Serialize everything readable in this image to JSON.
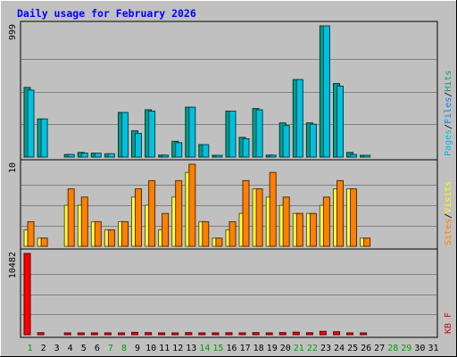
{
  "chart_data": {
    "type": "bar",
    "title": "Daily usage for February 2026",
    "x": [
      "1",
      "2",
      "3",
      "4",
      "5",
      "6",
      "7",
      "8",
      "9",
      "10",
      "11",
      "12",
      "13",
      "14",
      "15",
      "16",
      "17",
      "18",
      "19",
      "20",
      "21",
      "22",
      "23",
      "24",
      "25",
      "26",
      "27",
      "28",
      "29",
      "30",
      "31"
    ],
    "weekend_days": [
      "1",
      "7",
      "8",
      "14",
      "15",
      "21",
      "22",
      "28",
      "29"
    ],
    "panels": [
      {
        "name": "hits_files_pages",
        "ymax_label": "999",
        "ymax": 999,
        "legend": [
          {
            "text": "Pages",
            "color": "#00c0e0"
          },
          {
            "text": "/",
            "color": "#000000"
          },
          {
            "text": "Files",
            "color": "#0080ff"
          },
          {
            "text": "/",
            "color": "#000000"
          },
          {
            "text": "Hits",
            "color": "#00a080"
          }
        ],
        "series": [
          {
            "name": "Hits",
            "color": "#009e8a",
            "values": [
              530,
              290,
              0,
              20,
              35,
              30,
              25,
              340,
              200,
              360,
              15,
              120,
              380,
              95,
              10,
              350,
              150,
              370,
              15,
              260,
              590,
              260,
              999,
              560,
              35,
              10,
              0,
              0,
              0,
              0,
              0
            ]
          },
          {
            "name": "Pages",
            "color": "#00c0e0",
            "values": [
              510,
              290,
              0,
              20,
              30,
              30,
              25,
              340,
              180,
              350,
              15,
              110,
              380,
              95,
              10,
              350,
              140,
              360,
              15,
              240,
              590,
              250,
              999,
              540,
              20,
              10,
              0,
              0,
              0,
              0,
              0
            ]
          }
        ]
      },
      {
        "name": "visits_sites",
        "ymax_label": "10",
        "ymax": 10,
        "legend": [
          {
            "text": "Sites",
            "color": "#ff8000"
          },
          {
            "text": "/",
            "color": "#000000"
          },
          {
            "text": "Visits",
            "color": "#ffff00"
          }
        ],
        "series": [
          {
            "name": "Visits",
            "color": "#ffff40",
            "values": [
              2,
              1,
              0,
              5,
              5,
              3,
              2,
              3,
              6,
              5,
              2,
              6,
              9,
              3,
              1,
              2,
              4,
              7,
              6,
              5,
              4,
              4,
              5,
              7,
              7,
              1,
              0,
              0,
              0,
              0,
              0
            ]
          },
          {
            "name": "Sites",
            "color": "#ff8000",
            "values": [
              3,
              1,
              0,
              7,
              6,
              3,
              2,
              3,
              7,
              8,
              4,
              8,
              10,
              3,
              1,
              3,
              8,
              7,
              9,
              6,
              4,
              4,
              6,
              8,
              7,
              1,
              0,
              0,
              0,
              0,
              0
            ]
          }
        ]
      },
      {
        "name": "kbytes",
        "ymax_label": "10482",
        "ymax": 10482,
        "legend": [
          {
            "text": "KB F",
            "color": "#e00000"
          }
        ],
        "series": [
          {
            "name": "KB F",
            "color": "#ff0000",
            "values": [
              10482,
              250,
              0,
              170,
              220,
              220,
              220,
              230,
              300,
              270,
              180,
              170,
              270,
              190,
              180,
              250,
              220,
              270,
              230,
              270,
              320,
              250,
              430,
              380,
              200,
              200,
              0,
              0,
              0,
              0,
              0
            ]
          }
        ]
      }
    ]
  },
  "colors": {
    "background": "#c0c0c0",
    "plot_bg": "#c0c0c0",
    "frame": "#000000",
    "title": "#0000ff",
    "weekday_label": "#0000ff",
    "weekend_label": "#00a000",
    "gridline": "#808080"
  }
}
